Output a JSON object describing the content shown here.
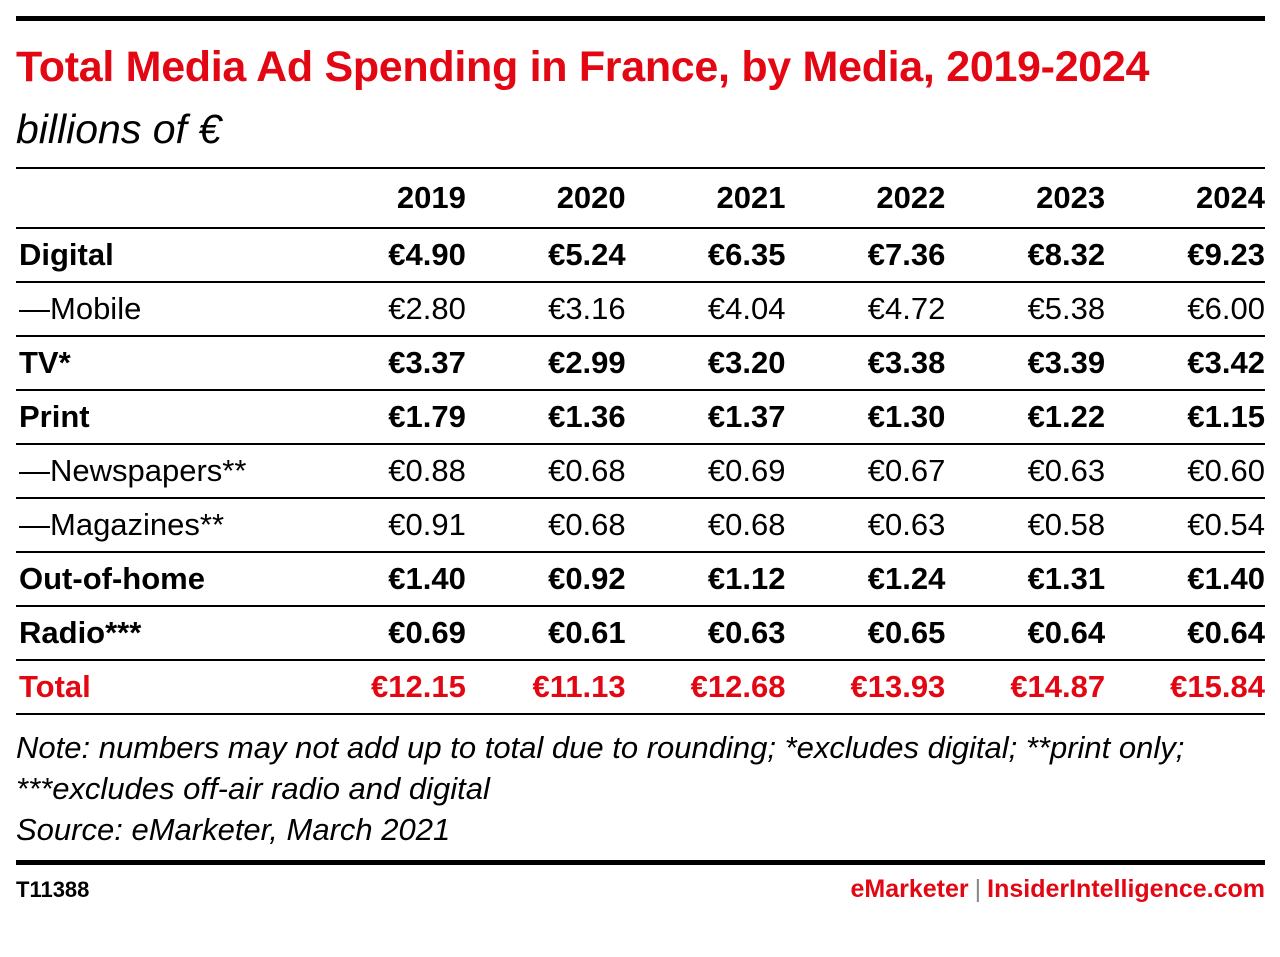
{
  "chart_data": {
    "type": "table",
    "title": "Total Media Ad Spending in France, by Media, 2019-2024",
    "subtitle": "billions of €",
    "columns": [
      "2019",
      "2020",
      "2021",
      "2022",
      "2023",
      "2024"
    ],
    "rows": [
      {
        "label": "Digital",
        "style": "bold",
        "values": [
          "€4.90",
          "€5.24",
          "€6.35",
          "€7.36",
          "€8.32",
          "€9.23"
        ]
      },
      {
        "label": "—Mobile",
        "style": "sub",
        "values": [
          "€2.80",
          "€3.16",
          "€4.04",
          "€4.72",
          "€5.38",
          "€6.00"
        ]
      },
      {
        "label": "TV*",
        "style": "bold",
        "values": [
          "€3.37",
          "€2.99",
          "€3.20",
          "€3.38",
          "€3.39",
          "€3.42"
        ]
      },
      {
        "label": "Print",
        "style": "bold",
        "values": [
          "€1.79",
          "€1.36",
          "€1.37",
          "€1.30",
          "€1.22",
          "€1.15"
        ]
      },
      {
        "label": "—Newspapers**",
        "style": "sub",
        "values": [
          "€0.88",
          "€0.68",
          "€0.69",
          "€0.67",
          "€0.63",
          "€0.60"
        ]
      },
      {
        "label": "—Magazines**",
        "style": "sub",
        "values": [
          "€0.91",
          "€0.68",
          "€0.68",
          "€0.63",
          "€0.58",
          "€0.54"
        ]
      },
      {
        "label": "Out-of-home",
        "style": "bold",
        "values": [
          "€1.40",
          "€0.92",
          "€1.12",
          "€1.24",
          "€1.31",
          "€1.40"
        ]
      },
      {
        "label": "Radio***",
        "style": "bold",
        "values": [
          "€0.69",
          "€0.61",
          "€0.63",
          "€0.65",
          "€0.64",
          "€0.64"
        ]
      },
      {
        "label": "Total",
        "style": "total",
        "values": [
          "€12.15",
          "€11.13",
          "€12.68",
          "€13.93",
          "€14.87",
          "€15.84"
        ]
      }
    ],
    "notes": [
      "Note: numbers may not add up to total due to rounding; *excludes digital; **print only; ***excludes off-air radio and digital",
      "Source: eMarketer, March 2021"
    ],
    "code": "T11388",
    "brand": {
      "left": "eMarketer",
      "separator": "|",
      "right": "InsiderIntelligence.com"
    },
    "colors": {
      "accent": "#e30613",
      "text": "#000000",
      "separator": "#888888"
    }
  }
}
